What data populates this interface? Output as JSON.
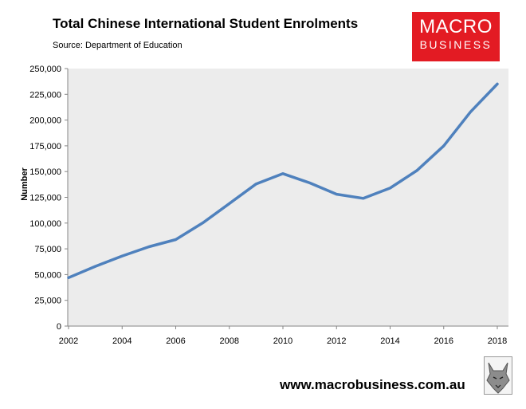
{
  "chart_data": {
    "type": "line",
    "title": "Total Chinese International Student Enrolments",
    "subtitle": "Source: Department of Education",
    "xlabel": "",
    "ylabel": "Number",
    "x": [
      2002,
      2003,
      2004,
      2005,
      2006,
      2007,
      2008,
      2009,
      2010,
      2011,
      2012,
      2013,
      2014,
      2015,
      2016,
      2017,
      2018
    ],
    "series": [
      {
        "name": "Total Chinese International Student Enrolments",
        "color": "#4f81bd",
        "values": [
          47000,
          58000,
          68000,
          77000,
          84000,
          100000,
          119000,
          138000,
          148000,
          139000,
          128000,
          124000,
          134000,
          151000,
          175000,
          208000,
          235000
        ]
      }
    ],
    "ylim": [
      0,
      250000
    ],
    "yticks": [
      "0",
      "25,000",
      "50,000",
      "75,000",
      "100,000",
      "125,000",
      "150,000",
      "175,000",
      "200,000",
      "225,000",
      "250,000"
    ],
    "xticks": [
      "2002",
      "2004",
      "2006",
      "2008",
      "2010",
      "2012",
      "2014",
      "2016",
      "2018"
    ],
    "grid": false
  },
  "branding": {
    "logo_line1": "MACRO",
    "logo_line2": "BUSINESS",
    "url": "www.macrobusiness.com.au",
    "accent": "#e31b23"
  }
}
